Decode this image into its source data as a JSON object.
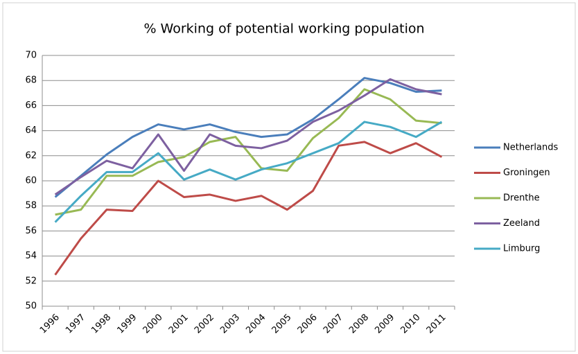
{
  "chart_data": {
    "type": "line",
    "title": "% Working of potential working population",
    "categories": [
      "1996",
      "1997",
      "1998",
      "1999",
      "2000",
      "2001",
      "2002",
      "2003",
      "2004",
      "2005",
      "2006",
      "2007",
      "2008",
      "2009",
      "2010",
      "2011"
    ],
    "series": [
      {
        "name": "Netherlands",
        "color": "#4a7ebb",
        "values": [
          58.7,
          60.4,
          62.1,
          63.5,
          64.5,
          64.1,
          64.5,
          63.9,
          63.5,
          63.7,
          64.9,
          66.5,
          68.2,
          67.8,
          67.1,
          67.2
        ]
      },
      {
        "name": "Groningen",
        "color": "#be4b48",
        "values": [
          52.5,
          55.4,
          57.7,
          57.6,
          60.0,
          58.7,
          58.9,
          58.4,
          58.8,
          57.7,
          59.2,
          62.8,
          63.1,
          62.2,
          63.0,
          61.9
        ]
      },
      {
        "name": "Drenthe",
        "color": "#98b954",
        "values": [
          57.3,
          57.7,
          60.4,
          60.4,
          61.5,
          61.9,
          63.1,
          63.5,
          61.0,
          60.8,
          63.4,
          65.0,
          67.3,
          66.5,
          64.8,
          64.6
        ]
      },
      {
        "name": "Zeeland",
        "color": "#7d60a0",
        "values": [
          58.9,
          60.3,
          61.6,
          61.0,
          63.7,
          60.8,
          63.7,
          62.8,
          62.6,
          63.2,
          64.7,
          65.6,
          66.8,
          68.1,
          67.3,
          66.9
        ]
      },
      {
        "name": "Limburg",
        "color": "#46aac5",
        "values": [
          56.7,
          58.8,
          60.7,
          60.7,
          62.2,
          60.1,
          60.9,
          60.1,
          60.9,
          61.4,
          62.2,
          63.0,
          64.7,
          64.3,
          63.5,
          64.7
        ]
      }
    ],
    "ylim": [
      50,
      70
    ],
    "yticks": [
      50,
      52,
      54,
      56,
      58,
      60,
      62,
      64,
      66,
      68,
      70
    ],
    "grid": true,
    "legend": "right"
  }
}
